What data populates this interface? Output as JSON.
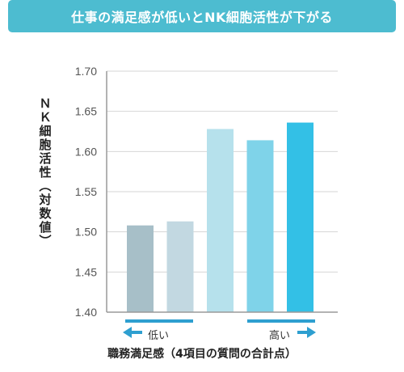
{
  "banner": {
    "title": "仕事の満足感が低いとNK細胞活性が下がる",
    "color": "#4dbcd0"
  },
  "chart_data": {
    "type": "bar",
    "title": "仕事の満足感が低いとNK細胞活性が下がる",
    "ylabel": "ＮＫ細胞活性（対数値）",
    "xlabel": "職務満足感（4項目の質問の合計点）",
    "ylim": [
      1.4,
      1.7
    ],
    "yticks": [
      "1.40",
      "1.45",
      "1.50",
      "1.55",
      "1.60",
      "1.65",
      "1.70"
    ],
    "values": [
      1.508,
      1.513,
      1.628,
      1.614,
      1.636
    ],
    "colors": [
      "#a7bfc8",
      "#c2d8e1",
      "#b6e1ec",
      "#7fd3e9",
      "#33c0e6"
    ],
    "grid": true,
    "direction": {
      "low_label": "低い",
      "high_label": "高い",
      "color": "#2e9fd0"
    }
  }
}
